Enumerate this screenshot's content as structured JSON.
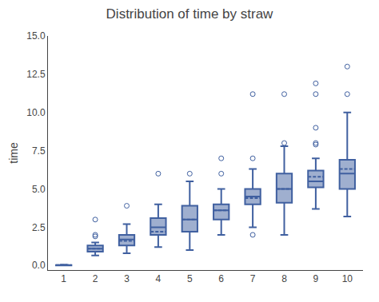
{
  "chart_data": {
    "type": "box",
    "title": "Distribution of time by straw",
    "ylabel": "time",
    "color": "#4060a0",
    "grid": false,
    "x": [
      1,
      2,
      3,
      4,
      5,
      6,
      7,
      8,
      9,
      10
    ],
    "xlim": [
      0.5,
      10.5
    ],
    "xticks": [
      1,
      2,
      3,
      4,
      5,
      6,
      7,
      8,
      9,
      10
    ],
    "ylim": [
      -0.3,
      15.0
    ],
    "yticks": [
      {
        "value": 0.0,
        "label": "0.0"
      },
      2.5,
      {
        "value": 5.0,
        "label": "5.0"
      },
      7.5,
      {
        "value": 10.0,
        "label": "10.0"
      },
      12.5,
      {
        "value": 15.0,
        "label": "15.0"
      }
    ],
    "boxes": [
      {
        "q1": 0.0,
        "median": 0.0,
        "q3": 0.02,
        "whislo": 0.0,
        "whishi": 0.05,
        "mean": 0.02,
        "fliers": []
      },
      {
        "q1": 0.9,
        "median": 1.1,
        "q3": 1.3,
        "whislo": 0.65,
        "whishi": 1.5,
        "mean": 1.1,
        "fliers": [
          1.9,
          2.0,
          3.0
        ]
      },
      {
        "q1": 1.3,
        "median": 1.7,
        "q3": 2.0,
        "whislo": 0.8,
        "whishi": 2.7,
        "mean": 1.6,
        "fliers": [
          3.9
        ]
      },
      {
        "q1": 2.0,
        "median": 2.5,
        "q3": 3.1,
        "whislo": 1.2,
        "whishi": 4.0,
        "mean": 2.2,
        "fliers": [
          6.0
        ]
      },
      {
        "q1": 2.2,
        "median": 3.0,
        "q3": 3.9,
        "whislo": 1.0,
        "whishi": 5.5,
        "mean": 3.0,
        "fliers": [
          6.0
        ]
      },
      {
        "q1": 3.0,
        "median": 3.6,
        "q3": 4.0,
        "whislo": 2.0,
        "whishi": 5.0,
        "mean": 3.6,
        "fliers": [
          6.0,
          7.0
        ]
      },
      {
        "q1": 4.0,
        "median": 4.5,
        "q3": 5.0,
        "whislo": 2.5,
        "whishi": 6.3,
        "mean": 4.4,
        "fliers": [
          2.0,
          7.0,
          11.2
        ]
      },
      {
        "q1": 4.1,
        "median": 5.0,
        "q3": 6.0,
        "whislo": 2.0,
        "whishi": 7.8,
        "mean": 5.0,
        "fliers": [
          8.0,
          11.2
        ]
      },
      {
        "q1": 5.1,
        "median": 5.5,
        "q3": 6.2,
        "whislo": 3.7,
        "whishi": 7.0,
        "mean": 5.8,
        "fliers": [
          7.9,
          8.0,
          9.0,
          11.2,
          11.9
        ]
      },
      {
        "q1": 5.0,
        "median": 6.0,
        "q3": 6.9,
        "whislo": 3.2,
        "whishi": 10.0,
        "mean": 6.3,
        "fliers": [
          11.2,
          13.0
        ]
      }
    ]
  }
}
